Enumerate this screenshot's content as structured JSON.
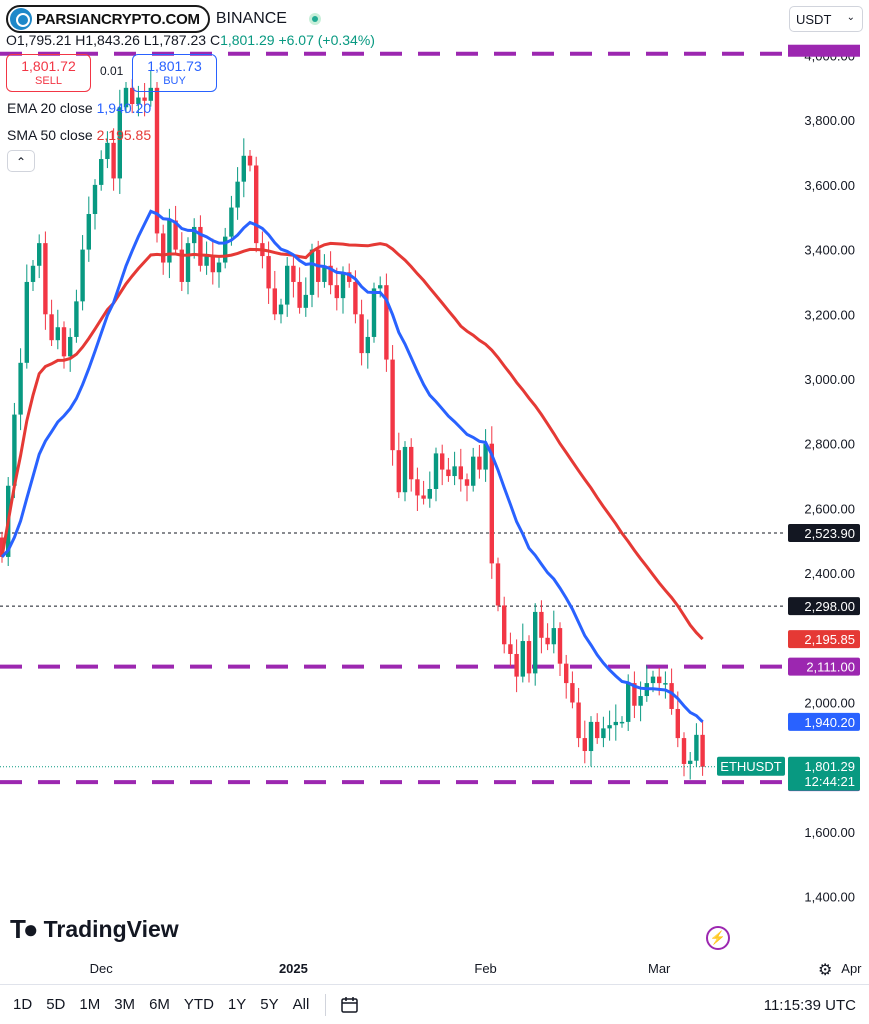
{
  "header": {
    "logo_text": "PARSIANCRYPTO.COM",
    "exchange": "BINANCE",
    "ohlc_line": "O1,795.21 H1,843.26 L1,787.23 C",
    "close_change": "1,801.29 +6.07 (+0.34%)"
  },
  "trade": {
    "sell_price": "1,801.72",
    "sell_label": "SELL",
    "spread": "0.01",
    "buy_price": "1,801.73",
    "buy_label": "BUY"
  },
  "indicators": {
    "ema_label": "EMA 20 close",
    "ema_value": "1,940.20",
    "sma_label": "SMA 50 close",
    "sma_value": "2,195.85",
    "collapse_icon": "chevron-up-icon"
  },
  "currency": {
    "selected": "USDT"
  },
  "colors": {
    "up": "#089981",
    "down": "#f23645",
    "ema": "#2962ff",
    "sma": "#e53935",
    "level": "#9c27b0",
    "badge_dark": "#131722"
  },
  "chart_data": {
    "type": "candlestick",
    "symbol": "ETHUSDT",
    "price_axis": {
      "min": 1300,
      "max": 4100,
      "ticks": [
        "1,400.00",
        "1,600.00",
        "2,000.00",
        "2,200.00",
        "2,400.00",
        "2,600.00",
        "2,800.00",
        "3,000.00",
        "3,200.00",
        "3,400.00",
        "3,600.00",
        "3,800.00",
        "4,000.00"
      ],
      "tick_values": [
        1400,
        1600,
        2000,
        2200,
        2400,
        2600,
        2800,
        3000,
        3200,
        3400,
        3600,
        3800,
        4000
      ]
    },
    "time_axis": [
      "Dec",
      "2025",
      "Feb",
      "Mar",
      "Apr"
    ],
    "start_date": "2024-11-15",
    "last_date": "2025-04-03",
    "closes": [
      2450,
      2670,
      2890,
      3050,
      3300,
      3350,
      3420,
      3200,
      3120,
      3160,
      3070,
      3130,
      3240,
      3400,
      3510,
      3600,
      3680,
      3730,
      3620,
      3840,
      3900,
      3850,
      3870,
      3860,
      3900,
      3450,
      3360,
      3490,
      3400,
      3300,
      3420,
      3470,
      3350,
      3380,
      3330,
      3360,
      3440,
      3530,
      3610,
      3690,
      3660,
      3420,
      3380,
      3280,
      3200,
      3230,
      3350,
      3300,
      3220,
      3260,
      3400,
      3300,
      3350,
      3290,
      3250,
      3330,
      3300,
      3200,
      3080,
      3130,
      3280,
      3290,
      3060,
      2780,
      2650,
      2790,
      2690,
      2640,
      2630,
      2660,
      2770,
      2720,
      2700,
      2730,
      2690,
      2670,
      2760,
      2720,
      2800,
      2430,
      2300,
      2180,
      2150,
      2080,
      2190,
      2090,
      2280,
      2200,
      2180,
      2230,
      2120,
      2060,
      2000,
      1890,
      1850,
      1940,
      1890,
      1920,
      1930,
      1940,
      1940,
      2060,
      1990,
      2020,
      2060,
      2080,
      2060,
      2060,
      1980,
      1890,
      1810,
      1820,
      1900,
      1801.29
    ],
    "ema20_last": 1940.2,
    "sma50_last": 2195.85,
    "levels": [
      {
        "price": 4005.5,
        "label": "4,005.50",
        "style": "dashed-purple"
      },
      {
        "price": 2523.9,
        "label": "2,523.90",
        "style": "dotted-dark"
      },
      {
        "price": 2298.0,
        "label": "2,298.00",
        "style": "dotted-dark"
      },
      {
        "price": 2111.0,
        "label": "2,111.00",
        "style": "dashed-purple"
      },
      {
        "price": 1754.0,
        "label": "1,754.00",
        "style": "dashed-purple"
      }
    ],
    "last_price": {
      "price": 1801.29,
      "label": "1,801.29",
      "countdown": "12:44:21",
      "symbol_label": "ETHUSDT"
    },
    "ema_label_value": "1,940.20",
    "sma_label_value": "2,195.85"
  },
  "branding": {
    "tv_text": "TradingView",
    "bolt_icon": "lightning-icon"
  },
  "bottom": {
    "ranges": [
      "1D",
      "5D",
      "1M",
      "3M",
      "6M",
      "YTD",
      "1Y",
      "5Y",
      "All"
    ],
    "time": "11:15:39 UTC"
  }
}
